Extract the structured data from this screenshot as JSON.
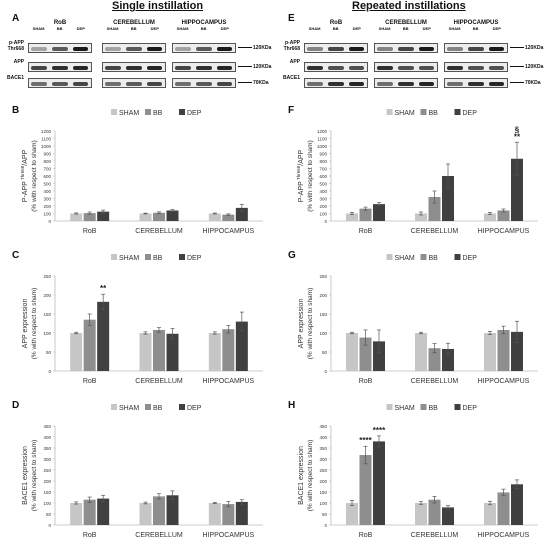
{
  "headers": {
    "single": "Single instillation",
    "repeated": "Repeated instillations"
  },
  "panel_letters": [
    "A",
    "B",
    "C",
    "D",
    "E",
    "F",
    "G",
    "H"
  ],
  "blot": {
    "tissues": [
      "RoB",
      "CEREBELLUM",
      "HIPPOCAMPUS"
    ],
    "lanes": [
      "SHAM",
      "BB",
      "DEP"
    ],
    "rows": [
      {
        "name": "p-APP Thr668",
        "kda": "120KDa"
      },
      {
        "name": "APP",
        "kda": "120KDa"
      },
      {
        "name": "BACE1",
        "kda": "70KDa"
      }
    ]
  },
  "chart_data": [
    {
      "panel": "B",
      "type": "bar",
      "categories": [
        "RoB",
        "CEREBELLUM",
        "HIPPOCAMPUS"
      ],
      "legend": [
        "SHAM",
        "BB",
        "DEP"
      ],
      "legend_position": "top",
      "ylabel_main": "P-APP",
      "ylabel_sup": "Thr668",
      "ylabel_tail": "/APP",
      "ylabel_sub": "(% with respect to sham)",
      "ylim": [
        0,
        1200
      ],
      "yticks": [
        0,
        100,
        200,
        300,
        400,
        500,
        600,
        700,
        800,
        900,
        1000,
        1100,
        1200
      ],
      "series": [
        {
          "name": "SHAM",
          "values": [
            100,
            100,
            100
          ],
          "errors": [
            8,
            5,
            6
          ]
        },
        {
          "name": "BB",
          "values": [
            105,
            110,
            85
          ],
          "errors": [
            15,
            12,
            10
          ]
        },
        {
          "name": "DEP",
          "values": [
            125,
            140,
            175
          ],
          "errors": [
            20,
            12,
            45
          ]
        }
      ],
      "annotations": []
    },
    {
      "panel": "C",
      "type": "bar",
      "categories": [
        "RoB",
        "CEREBELLUM",
        "HIPPOCAMPUS"
      ],
      "legend": [
        "SHAM",
        "BB",
        "DEP"
      ],
      "legend_position": "top",
      "ylabel_main": "APP expression",
      "ylabel_sup": "",
      "ylabel_tail": "",
      "ylabel_sub": "(% with respect to sham)",
      "ylim": [
        0,
        250
      ],
      "yticks": [
        0,
        50,
        100,
        150,
        200,
        250
      ],
      "series": [
        {
          "name": "SHAM",
          "values": [
            100,
            100,
            100
          ],
          "errors": [
            2,
            3,
            3
          ]
        },
        {
          "name": "BB",
          "values": [
            135,
            108,
            110
          ],
          "errors": [
            15,
            6,
            10
          ]
        },
        {
          "name": "DEP",
          "values": [
            182,
            98,
            130
          ],
          "errors": [
            20,
            14,
            25
          ]
        }
      ],
      "annotations": [
        {
          "category": 0,
          "series": 2,
          "text": "**"
        }
      ]
    },
    {
      "panel": "D",
      "type": "bar",
      "categories": [
        "RoB",
        "CEREBELLUM",
        "HIPPOCAMPUS"
      ],
      "legend": [
        "SHAM",
        "BB",
        "DEP"
      ],
      "legend_position": "top",
      "ylabel_main": "BACE1 expression",
      "ylabel_sup": "",
      "ylabel_tail": "",
      "ylabel_sub": "(% with respect to sham)",
      "ylim": [
        0,
        450
      ],
      "yticks": [
        0,
        50,
        100,
        150,
        200,
        250,
        300,
        350,
        400,
        450
      ],
      "series": [
        {
          "name": "SHAM",
          "values": [
            100,
            100,
            100
          ],
          "errors": [
            5,
            4,
            3
          ]
        },
        {
          "name": "BB",
          "values": [
            115,
            130,
            95
          ],
          "errors": [
            12,
            12,
            12
          ]
        },
        {
          "name": "DEP",
          "values": [
            120,
            135,
            105
          ],
          "errors": [
            15,
            20,
            10
          ]
        }
      ],
      "annotations": []
    },
    {
      "panel": "F",
      "type": "bar",
      "categories": [
        "RoB",
        "CEREBELLUM",
        "HIPPOCAMPUS"
      ],
      "legend": [
        "SHAM",
        "BB",
        "DEP"
      ],
      "legend_position": "top",
      "ylabel_main": "P-APP",
      "ylabel_sup": "Thr668",
      "ylabel_tail": "/APP",
      "ylabel_sub": "(% with respect to sham)",
      "ylim": [
        0,
        1200
      ],
      "yticks": [
        0,
        100,
        200,
        300,
        400,
        500,
        600,
        700,
        800,
        900,
        1000,
        1100,
        1200
      ],
      "series": [
        {
          "name": "SHAM",
          "values": [
            100,
            100,
            100
          ],
          "errors": [
            15,
            20,
            15
          ]
        },
        {
          "name": "BB",
          "values": [
            165,
            320,
            140
          ],
          "errors": [
            20,
            80,
            20
          ]
        },
        {
          "name": "DEP",
          "values": [
            225,
            600,
            830
          ],
          "errors": [
            20,
            160,
            220
          ]
        }
      ],
      "annotations": [
        {
          "category": 2,
          "series": 2,
          "text": "**"
        },
        {
          "category": 2,
          "series": 2,
          "text": "§"
        }
      ]
    },
    {
      "panel": "G",
      "type": "bar",
      "categories": [
        "RoB",
        "CEREBELLUM",
        "HIPPOCAMPUS"
      ],
      "legend": [
        "SHAM",
        "BB",
        "DEP"
      ],
      "legend_position": "top",
      "ylabel_main": "APP expression",
      "ylabel_sup": "",
      "ylabel_tail": "",
      "ylabel_sub": "(% with respect to sham)",
      "ylim": [
        0,
        250
      ],
      "yticks": [
        0,
        50,
        100,
        150,
        200,
        250
      ],
      "series": [
        {
          "name": "SHAM",
          "values": [
            100,
            100,
            100
          ],
          "errors": [
            2,
            2,
            4
          ]
        },
        {
          "name": "BB",
          "values": [
            88,
            60,
            108
          ],
          "errors": [
            20,
            12,
            10
          ]
        },
        {
          "name": "DEP",
          "values": [
            78,
            58,
            103
          ],
          "errors": [
            30,
            15,
            28
          ]
        }
      ],
      "annotations": []
    },
    {
      "panel": "H",
      "type": "bar",
      "categories": [
        "RoB",
        "CEREBELLUM",
        "HIPPOCAMPUS"
      ],
      "legend": [
        "SHAM",
        "BB",
        "DEP"
      ],
      "legend_position": "top",
      "ylabel_main": "BACE1 expression",
      "ylabel_sup": "",
      "ylabel_tail": "",
      "ylabel_sub": "(% with respect to sham)",
      "ylim": [
        0,
        450
      ],
      "yticks": [
        0,
        50,
        100,
        150,
        200,
        250,
        300,
        350,
        400,
        450
      ],
      "series": [
        {
          "name": "SHAM",
          "values": [
            100,
            100,
            100
          ],
          "errors": [
            12,
            6,
            8
          ]
        },
        {
          "name": "BB",
          "values": [
            318,
            115,
            148
          ],
          "errors": [
            40,
            15,
            15
          ]
        },
        {
          "name": "DEP",
          "values": [
            380,
            80,
            185
          ],
          "errors": [
            25,
            8,
            20
          ]
        }
      ],
      "annotations": [
        {
          "category": 1,
          "series": 1,
          "text": "****"
        },
        {
          "category": 2,
          "series": 1,
          "text": "****"
        }
      ],
      "annotation_mode": "category_series_as_index"
    }
  ],
  "colors": {
    "SHAM": "#c6c6c6",
    "BB": "#8e8e8e",
    "DEP": "#404040",
    "axis": "#bdbdbd",
    "text": "#333333"
  }
}
